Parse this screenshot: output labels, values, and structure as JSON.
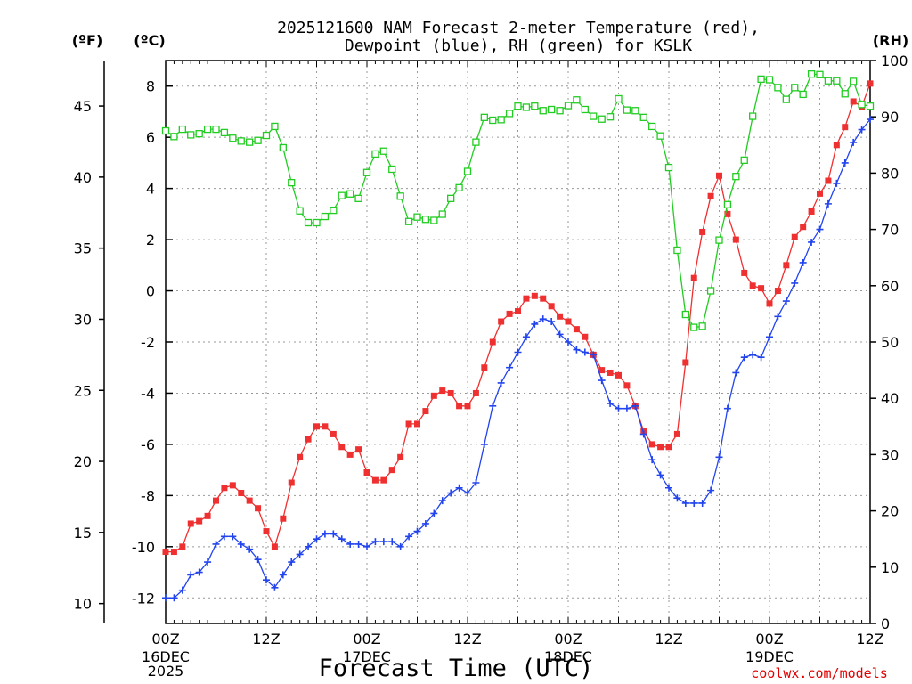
{
  "chart_data": {
    "type": "line",
    "title": "2025121600 NAM Forecast 2-meter Temperature (red),",
    "title_line2": "Dewpoint (blue), RH (green) for KSLK",
    "station": "KSLK",
    "unit_labels": {
      "fahrenheit": "(ºF)",
      "celsius": "(ºC)",
      "rh": "(RH)"
    },
    "xlabel": "Forecast Time (UTC)",
    "credit": "coolwx.com/models",
    "x_hours_range": [
      0,
      84
    ],
    "x_ticks": [
      {
        "hour": 0,
        "label": "00Z",
        "sub": [
          "16DEC",
          "2025"
        ]
      },
      {
        "hour": 12,
        "label": "12Z",
        "sub": []
      },
      {
        "hour": 24,
        "label": "00Z",
        "sub": [
          "17DEC"
        ]
      },
      {
        "hour": 36,
        "label": "12Z",
        "sub": []
      },
      {
        "hour": 48,
        "label": "00Z",
        "sub": [
          "18DEC"
        ]
      },
      {
        "hour": 60,
        "label": "12Z",
        "sub": []
      },
      {
        "hour": 72,
        "label": "00Z",
        "sub": [
          "19DEC"
        ]
      },
      {
        "hour": 84,
        "label": "12Z",
        "sub": []
      }
    ],
    "celsius_axis": {
      "range": [
        -13,
        9
      ],
      "ticks": [
        -12,
        -10,
        -8,
        -6,
        -4,
        -2,
        0,
        2,
        4,
        6,
        8
      ]
    },
    "fahrenheit_axis": {
      "range": [
        8.6,
        48.2
      ],
      "ticks": [
        10,
        15,
        20,
        25,
        30,
        35,
        40,
        45
      ]
    },
    "rh_axis": {
      "range": [
        0,
        100
      ],
      "ticks": [
        0,
        10,
        20,
        30,
        40,
        50,
        60,
        70,
        80,
        90,
        100
      ]
    },
    "series": [
      {
        "name": "Temperature (red)",
        "axis": "celsius",
        "color": "#ee3030",
        "marker": "filled-square",
        "hours": [
          0,
          1,
          2,
          3,
          4,
          5,
          6,
          7,
          8,
          9,
          10,
          11,
          12,
          13,
          14,
          15,
          16,
          17,
          18,
          19,
          20,
          21,
          22,
          23,
          24,
          25,
          26,
          27,
          28,
          29,
          30,
          31,
          32,
          33,
          34,
          35,
          36,
          37,
          38,
          39,
          40,
          41,
          42,
          43,
          44,
          45,
          46,
          47,
          48,
          49,
          50,
          51,
          52,
          53,
          54,
          55,
          56,
          57,
          58,
          59,
          60,
          61,
          62,
          63,
          64,
          65,
          66,
          67,
          68,
          69,
          70,
          71,
          72,
          73,
          74,
          75,
          76,
          77,
          78,
          79,
          80,
          81,
          82,
          83,
          84
        ],
        "values": [
          -10.2,
          -10.2,
          -10.0,
          -9.1,
          -9.0,
          -8.8,
          -8.2,
          -7.7,
          -7.6,
          -7.9,
          -8.2,
          -8.5,
          -9.4,
          -10.0,
          -8.9,
          -7.5,
          -6.5,
          -5.8,
          -5.3,
          -5.3,
          -5.6,
          -6.1,
          -6.4,
          -6.2,
          -7.1,
          -7.4,
          -7.4,
          -7.0,
          -6.5,
          -5.2,
          -5.2,
          -4.7,
          -4.1,
          -3.9,
          -4.0,
          -4.5,
          -4.5,
          -4.0,
          -3.0,
          -2.0,
          -1.2,
          -0.9,
          -0.8,
          -0.3,
          -0.2,
          -0.3,
          -0.6,
          -1.0,
          -1.2,
          -1.5,
          -1.8,
          -2.5,
          -3.1,
          -3.2,
          -3.3,
          -3.7,
          -4.5,
          -5.5,
          -6.0,
          -6.1,
          -6.1,
          -5.6,
          -2.8,
          0.5,
          2.3,
          3.7,
          4.5,
          3.0,
          2.0,
          0.7,
          0.2,
          0.1,
          -0.5,
          0.0,
          1.0,
          2.1,
          2.5,
          3.1,
          3.8,
          4.3,
          5.7,
          6.4,
          7.4,
          7.2,
          8.1
        ]
      },
      {
        "name": "Dewpoint (blue)",
        "axis": "celsius",
        "color": "#2244ee",
        "marker": "plus",
        "hours": [
          0,
          1,
          2,
          3,
          4,
          5,
          6,
          7,
          8,
          9,
          10,
          11,
          12,
          13,
          14,
          15,
          16,
          17,
          18,
          19,
          20,
          21,
          22,
          23,
          24,
          25,
          26,
          27,
          28,
          29,
          30,
          31,
          32,
          33,
          34,
          35,
          36,
          37,
          38,
          39,
          40,
          41,
          42,
          43,
          44,
          45,
          46,
          47,
          48,
          49,
          50,
          51,
          52,
          53,
          54,
          55,
          56,
          57,
          58,
          59,
          60,
          61,
          62,
          63,
          64,
          65,
          66,
          67,
          68,
          69,
          70,
          71,
          72,
          73,
          74,
          75,
          76,
          77,
          78,
          79,
          80,
          81,
          82,
          83,
          84
        ],
        "values": [
          -12.0,
          -12.0,
          -11.7,
          -11.1,
          -11.0,
          -10.6,
          -9.9,
          -9.6,
          -9.6,
          -9.9,
          -10.1,
          -10.5,
          -11.3,
          -11.6,
          -11.1,
          -10.6,
          -10.3,
          -10.0,
          -9.7,
          -9.5,
          -9.5,
          -9.7,
          -9.9,
          -9.9,
          -10.0,
          -9.8,
          -9.8,
          -9.8,
          -10.0,
          -9.6,
          -9.4,
          -9.1,
          -8.7,
          -8.2,
          -7.9,
          -7.7,
          -7.9,
          -7.5,
          -6.0,
          -4.5,
          -3.6,
          -3.0,
          -2.4,
          -1.8,
          -1.3,
          -1.1,
          -1.2,
          -1.7,
          -2.0,
          -2.3,
          -2.4,
          -2.5,
          -3.5,
          -4.4,
          -4.6,
          -4.6,
          -4.5,
          -5.6,
          -6.6,
          -7.2,
          -7.7,
          -8.1,
          -8.3,
          -8.3,
          -8.3,
          -7.8,
          -6.5,
          -4.6,
          -3.2,
          -2.6,
          -2.5,
          -2.6,
          -1.8,
          -1.0,
          -0.4,
          0.3,
          1.1,
          1.9,
          2.4,
          3.4,
          4.2,
          5.0,
          5.8,
          6.3,
          6.7
        ]
      },
      {
        "name": "RH (green)",
        "axis": "rh",
        "color": "#22cc22",
        "marker": "open-square",
        "hours": [
          0,
          1,
          2,
          3,
          4,
          5,
          6,
          7,
          8,
          9,
          10,
          11,
          12,
          13,
          14,
          15,
          16,
          17,
          18,
          19,
          20,
          21,
          22,
          23,
          24,
          25,
          26,
          27,
          28,
          29,
          30,
          31,
          32,
          33,
          34,
          35,
          36,
          37,
          38,
          39,
          40,
          41,
          42,
          43,
          44,
          45,
          46,
          47,
          48,
          49,
          50,
          51,
          52,
          53,
          54,
          55,
          56,
          57,
          58,
          59,
          60,
          61,
          62,
          63,
          64,
          65,
          66,
          67,
          68,
          69,
          70,
          71,
          72,
          73,
          74,
          75,
          76,
          77,
          78,
          79,
          80,
          81,
          82,
          83,
          84
        ],
        "values": [
          87.5,
          86.5,
          87.8,
          86.8,
          87.0,
          87.8,
          87.8,
          87.2,
          86.2,
          85.7,
          85.5,
          85.8,
          86.7,
          88.3,
          84.5,
          78.3,
          73.3,
          71.2,
          71.2,
          72.3,
          73.4,
          76.0,
          76.3,
          75.5,
          80.1,
          83.4,
          83.9,
          80.7,
          75.9,
          71.4,
          72.2,
          71.8,
          71.6,
          72.7,
          75.5,
          77.4,
          80.3,
          85.5,
          89.9,
          89.4,
          89.5,
          90.6,
          91.9,
          91.7,
          91.9,
          91.1,
          91.3,
          91.1,
          92.0,
          93.0,
          91.3,
          90.1,
          89.6,
          90.0,
          93.2,
          91.2,
          91.1,
          89.9,
          88.3,
          86.6,
          81.0,
          66.3,
          54.9,
          52.6,
          52.8,
          59.1,
          68.1,
          74.4,
          79.4,
          82.3,
          90.1,
          96.7,
          96.6,
          95.2,
          93.1,
          95.2,
          94.0,
          97.6,
          97.5,
          96.4,
          96.4,
          94.1,
          96.3,
          92.2,
          91.9
        ]
      }
    ]
  }
}
